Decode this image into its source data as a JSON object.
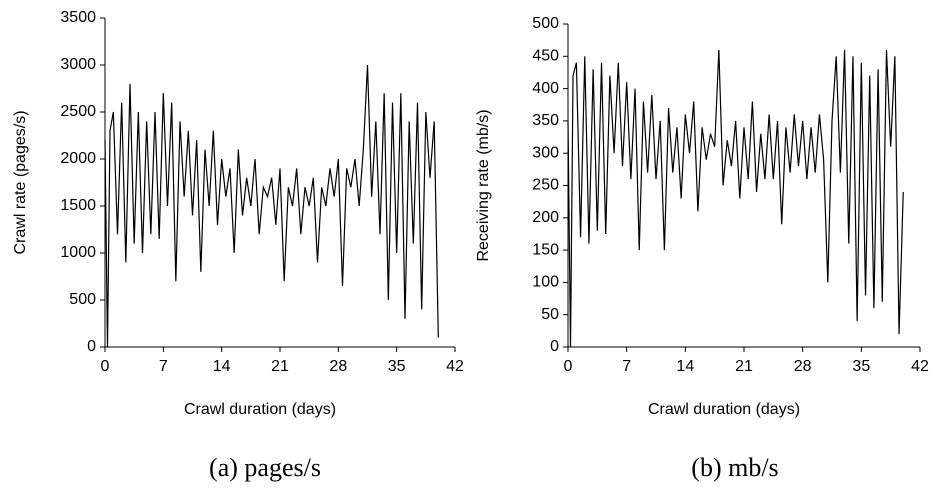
{
  "chart_data": [
    {
      "type": "line",
      "x_label": "Crawl duration (days)",
      "y_label": "Crawl rate (pages/s)",
      "caption": "(a) pages/s",
      "color": "#000000",
      "x": [
        0,
        0.3,
        0.6,
        1,
        1.5,
        2,
        2.5,
        3,
        3.5,
        4,
        4.5,
        5,
        5.5,
        6,
        6.5,
        7,
        7.5,
        8,
        8.5,
        9,
        9.5,
        10,
        10.5,
        11,
        11.5,
        12,
        12.5,
        13,
        13.5,
        14,
        14.5,
        15,
        15.5,
        16,
        16.5,
        17,
        17.5,
        18,
        18.5,
        19,
        19.5,
        20,
        20.5,
        21,
        21.5,
        22,
        22.5,
        23,
        23.5,
        24,
        24.5,
        25,
        25.5,
        26,
        26.5,
        27,
        27.5,
        28,
        28.5,
        29,
        29.5,
        30,
        30.5,
        31,
        31.5,
        32,
        32.5,
        33,
        33.5,
        34,
        34.5,
        35,
        35.5,
        36,
        36.5,
        37,
        37.5,
        38,
        38.5,
        39,
        39.5,
        40
      ],
      "values": [
        2200,
        0,
        2300,
        2500,
        1200,
        2600,
        900,
        2800,
        1100,
        2500,
        1000,
        2400,
        1200,
        2500,
        1150,
        2700,
        1500,
        2600,
        700,
        2400,
        1600,
        2300,
        1400,
        2200,
        800,
        2100,
        1500,
        2300,
        1300,
        2000,
        1600,
        1900,
        1000,
        2100,
        1400,
        1800,
        1500,
        2000,
        1200,
        1700,
        1600,
        1800,
        1300,
        1900,
        700,
        1700,
        1500,
        1900,
        1200,
        1700,
        1500,
        1800,
        900,
        1700,
        1500,
        1900,
        1600,
        2000,
        650,
        1900,
        1700,
        2000,
        1500,
        2100,
        3000,
        1600,
        2400,
        1200,
        2700,
        500,
        2600,
        1000,
        2700,
        300,
        2400,
        1100,
        2600,
        400,
        2500,
        1800,
        2400,
        100
      ],
      "xlim": [
        0,
        42
      ],
      "xticks": [
        0,
        7,
        14,
        21,
        28,
        35,
        42
      ],
      "ylim": [
        0,
        3500
      ],
      "yticks": [
        0,
        500,
        1000,
        1500,
        2000,
        2500,
        3000,
        3500
      ]
    },
    {
      "type": "line",
      "x_label": "Crawl duration (days)",
      "y_label": "Receiving rate (mb/s)",
      "caption": "(b) mb/s",
      "color": "#000000",
      "x": [
        0,
        0.3,
        0.6,
        1,
        1.5,
        2,
        2.5,
        3,
        3.5,
        4,
        4.5,
        5,
        5.5,
        6,
        6.5,
        7,
        7.5,
        8,
        8.5,
        9,
        9.5,
        10,
        10.5,
        11,
        11.5,
        12,
        12.5,
        13,
        13.5,
        14,
        14.5,
        15,
        15.5,
        16,
        16.5,
        17,
        17.5,
        18,
        18.5,
        19,
        19.5,
        20,
        20.5,
        21,
        21.5,
        22,
        22.5,
        23,
        23.5,
        24,
        24.5,
        25,
        25.5,
        26,
        26.5,
        27,
        27.5,
        28,
        28.5,
        29,
        29.5,
        30,
        30.5,
        31,
        31.5,
        32,
        32.5,
        33,
        33.5,
        34,
        34.5,
        35,
        35.5,
        36,
        36.5,
        37,
        37.5,
        38,
        38.5,
        39,
        39.5,
        40
      ],
      "values": [
        350,
        0,
        420,
        440,
        170,
        450,
        160,
        430,
        180,
        440,
        175,
        420,
        300,
        440,
        280,
        410,
        260,
        400,
        150,
        380,
        270,
        390,
        260,
        350,
        150,
        370,
        270,
        340,
        230,
        360,
        300,
        380,
        210,
        340,
        290,
        330,
        310,
        460,
        250,
        320,
        280,
        350,
        230,
        340,
        260,
        380,
        240,
        330,
        260,
        360,
        260,
        350,
        190,
        340,
        270,
        360,
        280,
        350,
        260,
        340,
        270,
        360,
        290,
        100,
        350,
        450,
        270,
        460,
        160,
        450,
        40,
        440,
        80,
        420,
        60,
        430,
        70,
        460,
        310,
        450,
        20,
        240
      ],
      "xlim": [
        0,
        42
      ],
      "xticks": [
        0,
        7,
        14,
        21,
        28,
        35,
        42
      ],
      "ylim": [
        0,
        500
      ],
      "yticks": [
        0,
        50,
        100,
        150,
        200,
        250,
        300,
        350,
        400,
        450,
        500
      ]
    }
  ]
}
